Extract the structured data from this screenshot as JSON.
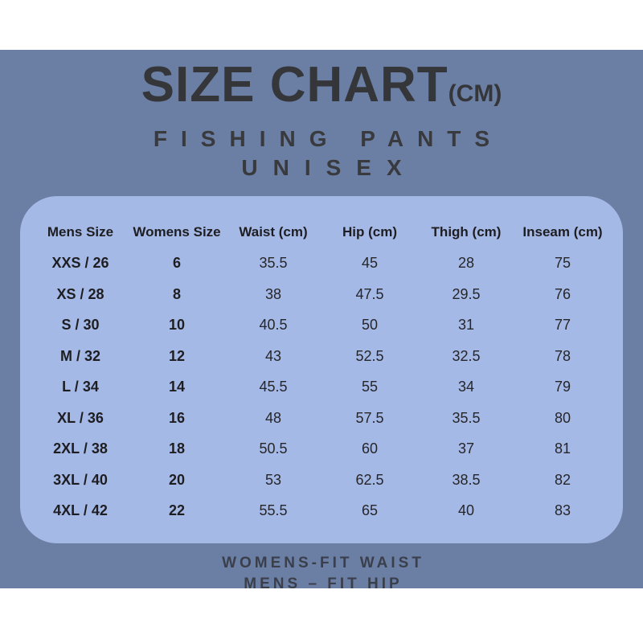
{
  "title": {
    "main": "SIZE CHART",
    "unit": "(CM)"
  },
  "subtitle": {
    "line1": "FISHING PANTS",
    "line2": "UNISEX"
  },
  "colors": {
    "background": "#ffffff",
    "poster": "#6b7ea3",
    "panel": "#a5b9e6",
    "text_dark": "#35363a"
  },
  "table": {
    "headers": [
      "Mens Size",
      "Womens Size",
      "Waist (cm)",
      "Hip (cm)",
      "Thigh (cm)",
      "Inseam (cm)"
    ],
    "rows": [
      [
        "XXS / 26",
        "6",
        "35.5",
        "45",
        "28",
        "75"
      ],
      [
        "XS / 28",
        "8",
        "38",
        "47.5",
        "29.5",
        "76"
      ],
      [
        "S / 30",
        "10",
        "40.5",
        "50",
        "31",
        "77"
      ],
      [
        "M / 32",
        "12",
        "43",
        "52.5",
        "32.5",
        "78"
      ],
      [
        "L / 34",
        "14",
        "45.5",
        "55",
        "34",
        "79"
      ],
      [
        "XL / 36",
        "16",
        "48",
        "57.5",
        "35.5",
        "80"
      ],
      [
        "2XL / 38",
        "18",
        "50.5",
        "60",
        "37",
        "81"
      ],
      [
        "3XL / 40",
        "20",
        "53",
        "62.5",
        "38.5",
        "82"
      ],
      [
        "4XL / 42",
        "22",
        "55.5",
        "65",
        "40",
        "83"
      ]
    ]
  },
  "footer": {
    "line1": "WOMENS-FIT WAIST",
    "line2": "MENS – FIT HIP"
  },
  "chart_data": {
    "type": "table",
    "title": "SIZE CHART (CM) — FISHING PANTS UNISEX",
    "columns": [
      "Mens Size",
      "Womens Size",
      "Waist (cm)",
      "Hip (cm)",
      "Thigh (cm)",
      "Inseam (cm)"
    ],
    "rows": [
      [
        "XXS / 26",
        6,
        35.5,
        45,
        28,
        75
      ],
      [
        "XS / 28",
        8,
        38,
        47.5,
        29.5,
        76
      ],
      [
        "S / 30",
        10,
        40.5,
        50,
        31,
        77
      ],
      [
        "M / 32",
        12,
        43,
        52.5,
        32.5,
        78
      ],
      [
        "L / 34",
        14,
        45.5,
        55,
        34,
        79
      ],
      [
        "XL / 36",
        16,
        48,
        57.5,
        35.5,
        80
      ],
      [
        "2XL / 38",
        18,
        50.5,
        60,
        37,
        81
      ],
      [
        "3XL / 40",
        20,
        53,
        62.5,
        38.5,
        82
      ],
      [
        "4XL / 42",
        22,
        55.5,
        65,
        40,
        83
      ]
    ],
    "notes": [
      "WOMENS-FIT WAIST",
      "MENS – FIT HIP"
    ]
  }
}
